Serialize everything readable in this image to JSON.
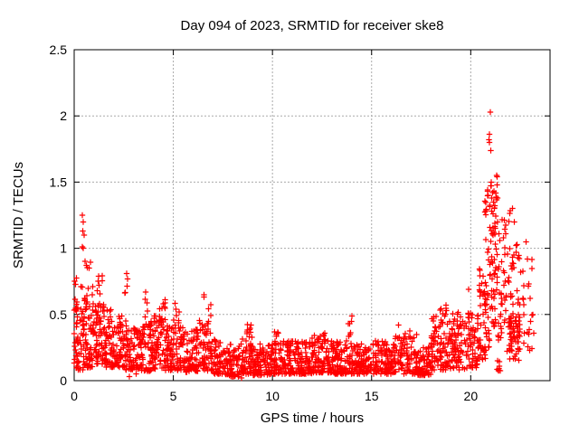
{
  "chart_data": {
    "type": "scatter",
    "title": "Day 094 of 2023, SRMTID for receiver ske8",
    "xlabel": "GPS time / hours",
    "ylabel": "SRMTID / TECUs",
    "xlim": [
      0,
      24
    ],
    "ylim": [
      0,
      2.5
    ],
    "xticks": [
      0,
      5,
      10,
      15,
      20
    ],
    "xtick_labels": [
      "0",
      "5",
      "10",
      "15",
      "20"
    ],
    "yticks": [
      0,
      0.5,
      1,
      1.5,
      2,
      2.5
    ],
    "ytick_labels": [
      "0",
      "0.5",
      "1",
      "1.5",
      "2",
      "2.5"
    ],
    "grid": true,
    "grid_style": "dashed",
    "legend_position": "none",
    "marker": "plus",
    "marker_color": "#ff0000",
    "grid_color": "#aaaaaa",
    "axis_color": "#000000",
    "background_color": "#ffffff",
    "series": [
      {
        "name": "SRMTID",
        "color": "#ff0000"
      }
    ],
    "seed": 94,
    "point_clusters": [
      [
        0.0,
        0.5,
        55,
        0.08,
        0.65,
        1.6
      ],
      [
        0.05,
        0.6,
        12,
        0.4,
        0.78,
        1.0
      ],
      [
        0.5,
        1.0,
        60,
        0.1,
        0.62,
        1.4
      ],
      [
        0.55,
        0.95,
        8,
        0.55,
        0.9,
        1.0
      ],
      [
        1.0,
        1.5,
        60,
        0.12,
        0.6,
        1.3
      ],
      [
        1.15,
        1.5,
        8,
        0.55,
        0.8,
        1.0
      ],
      [
        1.5,
        2.0,
        58,
        0.1,
        0.55,
        1.4
      ],
      [
        2.0,
        2.5,
        55,
        0.1,
        0.5,
        1.5
      ],
      [
        2.5,
        3.0,
        55,
        0.08,
        0.45,
        1.5
      ],
      [
        2.55,
        2.75,
        4,
        0.6,
        0.8,
        1.0
      ],
      [
        3.0,
        3.5,
        55,
        0.08,
        0.42,
        1.5
      ],
      [
        3.5,
        4.0,
        55,
        0.07,
        0.45,
        1.5
      ],
      [
        3.55,
        3.75,
        4,
        0.48,
        0.66,
        1.0
      ],
      [
        4.0,
        4.7,
        70,
        0.08,
        0.5,
        1.4
      ],
      [
        4.2,
        4.65,
        10,
        0.44,
        0.62,
        1.0
      ],
      [
        4.7,
        5.5,
        75,
        0.08,
        0.42,
        1.5
      ],
      [
        4.9,
        5.3,
        8,
        0.4,
        0.6,
        1.0
      ],
      [
        5.5,
        6.0,
        50,
        0.06,
        0.38,
        1.5
      ],
      [
        6.0,
        7.0,
        95,
        0.07,
        0.42,
        1.5
      ],
      [
        6.3,
        6.9,
        10,
        0.4,
        0.64,
        1.0
      ],
      [
        7.0,
        7.6,
        55,
        0.05,
        0.32,
        1.6
      ],
      [
        7.6,
        8.4,
        75,
        0.03,
        0.28,
        1.5
      ],
      [
        8.4,
        9.0,
        55,
        0.05,
        0.33,
        1.5
      ],
      [
        8.7,
        8.95,
        8,
        0.3,
        0.43,
        1.0
      ],
      [
        9.0,
        10.0,
        95,
        0.04,
        0.28,
        1.5
      ],
      [
        10.0,
        11.0,
        95,
        0.05,
        0.3,
        1.5
      ],
      [
        10.1,
        10.35,
        5,
        0.28,
        0.37,
        1.0
      ],
      [
        11.0,
        12.0,
        95,
        0.05,
        0.3,
        1.5
      ],
      [
        12.0,
        13.0,
        95,
        0.06,
        0.32,
        1.5
      ],
      [
        12.1,
        12.8,
        8,
        0.3,
        0.38,
        1.0
      ],
      [
        13.0,
        14.0,
        95,
        0.05,
        0.3,
        1.5
      ],
      [
        13.8,
        14.0,
        6,
        0.3,
        0.45,
        1.0
      ],
      [
        14.0,
        15.0,
        95,
        0.05,
        0.28,
        1.5
      ],
      [
        15.0,
        16.0,
        95,
        0.05,
        0.3,
        1.5
      ],
      [
        16.0,
        16.6,
        55,
        0.06,
        0.35,
        1.4
      ],
      [
        16.6,
        17.3,
        60,
        0.05,
        0.38,
        1.5
      ],
      [
        17.3,
        18.0,
        65,
        0.04,
        0.26,
        1.5
      ],
      [
        18.0,
        19.0,
        95,
        0.08,
        0.5,
        1.3
      ],
      [
        18.4,
        18.9,
        10,
        0.44,
        0.57,
        1.0
      ],
      [
        19.0,
        20.0,
        95,
        0.08,
        0.52,
        1.3
      ],
      [
        20.0,
        20.4,
        40,
        0.1,
        0.5,
        1.3
      ],
      [
        20.4,
        20.8,
        45,
        0.15,
        0.85,
        1.2
      ],
      [
        20.7,
        21.0,
        35,
        0.25,
        1.5,
        1.2
      ],
      [
        21.0,
        21.3,
        40,
        0.4,
        1.5,
        1.0
      ],
      [
        21.2,
        21.6,
        35,
        0.3,
        1.45,
        1.1
      ],
      [
        21.3,
        21.5,
        8,
        0.07,
        0.15,
        1.0
      ],
      [
        21.6,
        22.1,
        45,
        0.2,
        1.3,
        1.2
      ],
      [
        21.9,
        22.5,
        45,
        0.15,
        0.5,
        1.2
      ],
      [
        22.1,
        22.5,
        25,
        0.3,
        1.05,
        1.1
      ],
      [
        22.5,
        23.1,
        18,
        0.17,
        0.95,
        1.1
      ],
      [
        22.9,
        23.2,
        6,
        0.3,
        0.55,
        1.0
      ]
    ],
    "outlier_points": [
      [
        0.42,
        1.25
      ],
      [
        0.45,
        1.2
      ],
      [
        0.44,
        1.13
      ],
      [
        0.5,
        1.1
      ],
      [
        0.4,
        1.01
      ],
      [
        0.46,
        1.0
      ],
      [
        0.03,
        0.75
      ],
      [
        0.55,
        0.9
      ],
      [
        0.75,
        0.85
      ],
      [
        2.65,
        0.81
      ],
      [
        2.79,
        0.03
      ],
      [
        3.12,
        0.05
      ],
      [
        3.6,
        0.67
      ],
      [
        6.55,
        0.65
      ],
      [
        8.45,
        0.02
      ],
      [
        14.0,
        0.49
      ],
      [
        16.35,
        0.42
      ],
      [
        19.9,
        0.69
      ],
      [
        20.99,
        2.03
      ],
      [
        20.95,
        1.86
      ],
      [
        20.93,
        1.82
      ],
      [
        20.95,
        1.8
      ],
      [
        21.0,
        1.74
      ],
      [
        21.3,
        1.55
      ],
      [
        21.32,
        1.54
      ],
      [
        21.34,
        1.48
      ],
      [
        20.85,
        1.44
      ],
      [
        20.88,
        1.4
      ],
      [
        21.05,
        1.38
      ],
      [
        21.1,
        1.42
      ],
      [
        21.15,
        1.35
      ],
      [
        21.2,
        1.3
      ],
      [
        22.1,
        1.3
      ],
      [
        22.2,
        1.2
      ],
      [
        22.8,
        1.05
      ],
      [
        22.85,
        0.92
      ]
    ]
  }
}
